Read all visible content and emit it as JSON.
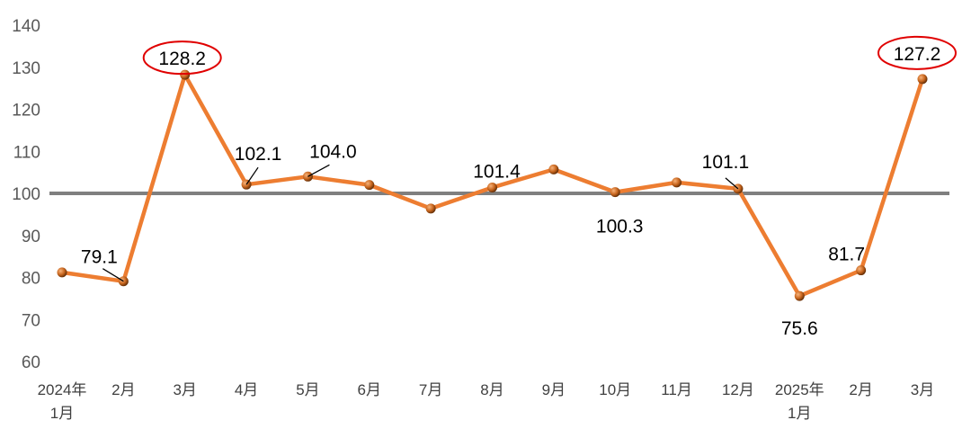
{
  "chart_data": {
    "type": "line",
    "categories": [
      "2024年\n1月",
      "2月",
      "3月",
      "4月",
      "5月",
      "6月",
      "7月",
      "8月",
      "9月",
      "10月",
      "11月",
      "12月",
      "2025年\n1月",
      "2月",
      "3月"
    ],
    "values": [
      81.2,
      79.1,
      128.2,
      102.1,
      104.0,
      102.0,
      96.4,
      101.4,
      105.7,
      100.3,
      102.6,
      101.1,
      75.6,
      81.7,
      127.2
    ],
    "data_labels": [
      {
        "index": 1,
        "text": "79.1"
      },
      {
        "index": 2,
        "text": "128.2",
        "highlighted": true
      },
      {
        "index": 3,
        "text": "102.1"
      },
      {
        "index": 4,
        "text": "104.0"
      },
      {
        "index": 7,
        "text": "101.4"
      },
      {
        "index": 9,
        "text": "100.3"
      },
      {
        "index": 11,
        "text": "101.1"
      },
      {
        "index": 12,
        "text": "75.6"
      },
      {
        "index": 13,
        "text": "81.7"
      },
      {
        "index": 14,
        "text": "127.2",
        "highlighted": true
      }
    ],
    "reference_line": 100,
    "ylim": [
      60,
      140
    ],
    "yticks": [
      60,
      70,
      80,
      90,
      100,
      110,
      120,
      130,
      140
    ],
    "title": "",
    "xlabel": "",
    "ylabel": "",
    "grid": false,
    "colors": {
      "line": "#ed7d31",
      "marker": "#c0651f",
      "reference": "#7f7f7f",
      "highlight": "#e00000",
      "axis_text": "#595959"
    }
  }
}
